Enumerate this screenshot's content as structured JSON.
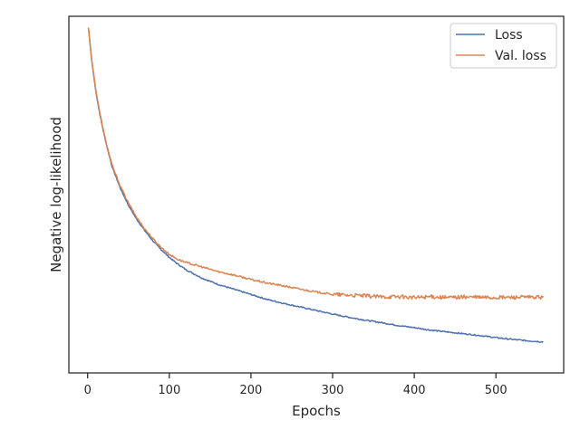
{
  "chart_data": {
    "type": "line",
    "title": "",
    "xlabel": "Epochs",
    "ylabel": "Negative log-likelihood",
    "xlim": [
      -23,
      583
    ],
    "ylim": [
      0,
      1
    ],
    "xticks": [
      0,
      100,
      200,
      300,
      400,
      500
    ],
    "yticks": [],
    "grid": false,
    "legend_position": "top-right",
    "series": [
      {
        "name": "Loss",
        "color": "#4c72b0",
        "x": [
          1,
          5,
          10,
          15,
          20,
          25,
          30,
          40,
          50,
          60,
          70,
          80,
          90,
          100,
          110,
          120,
          140,
          160,
          180,
          200,
          220,
          240,
          260,
          280,
          300,
          320,
          340,
          360,
          380,
          400,
          420,
          440,
          460,
          480,
          500,
          520,
          540,
          558
        ],
        "y": [
          0.966,
          0.875,
          0.79,
          0.724,
          0.67,
          0.622,
          0.578,
          0.518,
          0.47,
          0.431,
          0.399,
          0.37,
          0.346,
          0.324,
          0.306,
          0.29,
          0.266,
          0.248,
          0.234,
          0.22,
          0.206,
          0.195,
          0.185,
          0.175,
          0.165,
          0.156,
          0.148,
          0.141,
          0.133,
          0.127,
          0.12,
          0.115,
          0.11,
          0.105,
          0.099,
          0.094,
          0.09,
          0.087
        ]
      },
      {
        "name": "Val. loss",
        "color": "#dd8452",
        "x": [
          1,
          5,
          10,
          15,
          20,
          25,
          30,
          40,
          50,
          60,
          70,
          80,
          90,
          100,
          110,
          120,
          140,
          160,
          180,
          200,
          220,
          240,
          260,
          280,
          300,
          320,
          340,
          360,
          380,
          400,
          420,
          440,
          460,
          480,
          500,
          520,
          540,
          558
        ],
        "y": [
          0.968,
          0.878,
          0.795,
          0.728,
          0.672,
          0.625,
          0.582,
          0.524,
          0.476,
          0.436,
          0.404,
          0.376,
          0.352,
          0.332,
          0.319,
          0.31,
          0.297,
          0.284,
          0.274,
          0.262,
          0.252,
          0.244,
          0.235,
          0.227,
          0.22,
          0.218,
          0.216,
          0.213,
          0.214,
          0.211,
          0.214,
          0.211,
          0.213,
          0.212,
          0.211,
          0.212,
          0.212,
          0.212
        ]
      }
    ]
  }
}
